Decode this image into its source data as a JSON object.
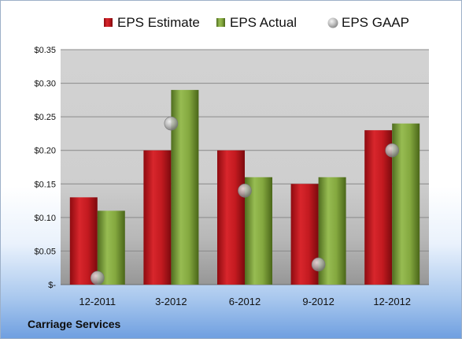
{
  "company_name": "Carriage Services",
  "chart_data": {
    "type": "bar",
    "categories": [
      "12-2011",
      "3-2012",
      "6-2012",
      "9-2012",
      "12-2012"
    ],
    "series": [
      {
        "name": "EPS Estimate",
        "type": "bar",
        "color": "#c0141c",
        "values": [
          0.13,
          0.2,
          0.2,
          0.15,
          0.23
        ]
      },
      {
        "name": "EPS Actual",
        "type": "bar",
        "color": "#7ea33a",
        "values": [
          0.11,
          0.29,
          0.16,
          0.16,
          0.24
        ]
      },
      {
        "name": "EPS GAAP",
        "type": "scatter",
        "color": "#a8a8a8",
        "values": [
          0.01,
          0.24,
          0.14,
          0.03,
          0.2
        ]
      }
    ],
    "ylim": [
      0,
      0.35
    ],
    "yticks": [
      0,
      0.05,
      0.1,
      0.15,
      0.2,
      0.25,
      0.3,
      0.35
    ],
    "ytick_labels": [
      "$-",
      "$0.05",
      "$0.10",
      "$0.15",
      "$0.20",
      "$0.25",
      "$0.30",
      "$0.35"
    ],
    "legend_position": "top",
    "grid": true
  }
}
